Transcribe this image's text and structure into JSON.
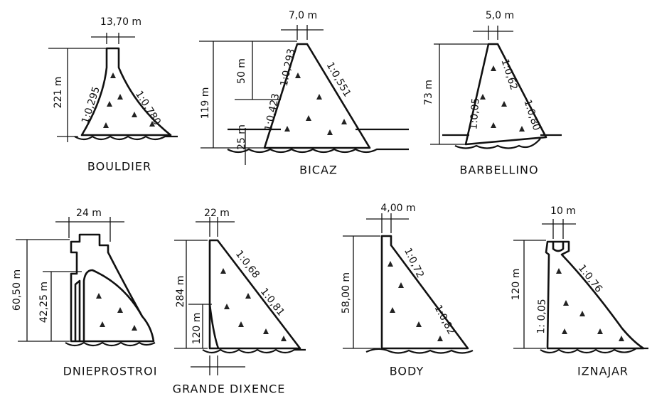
{
  "dams": [
    {
      "name": "BOULDIER",
      "labels": [
        "13,70 m",
        "221 m",
        "1:0,295",
        "1:0,780"
      ]
    },
    {
      "name": "BICAZ",
      "labels": [
        "7,0 m",
        "119 m",
        "50 m",
        "25 m",
        "1:0,423",
        "1:0,293",
        "1:0,551"
      ]
    },
    {
      "name": "BARBELLINO",
      "labels": [
        "5,0 m",
        "73 m",
        "1:0,05",
        "1:0,62",
        "1:0,80"
      ]
    },
    {
      "name": "DNIEPROSTROI",
      "labels": [
        "24 m",
        "60,50 m",
        "42,25 m"
      ]
    },
    {
      "name": "GRANDE DIXENCE",
      "labels": [
        "22 m",
        "284 m",
        "120 m",
        "1:0,68",
        "1:0,81"
      ]
    },
    {
      "name": "BODY",
      "labels": [
        "4,00 m",
        "58,00 m",
        "1:0,72",
        "1:0,82"
      ]
    },
    {
      "name": "IZNAJAR",
      "labels": [
        "10 m",
        "120 m",
        "1: 0,05",
        "1:0,76"
      ]
    }
  ]
}
